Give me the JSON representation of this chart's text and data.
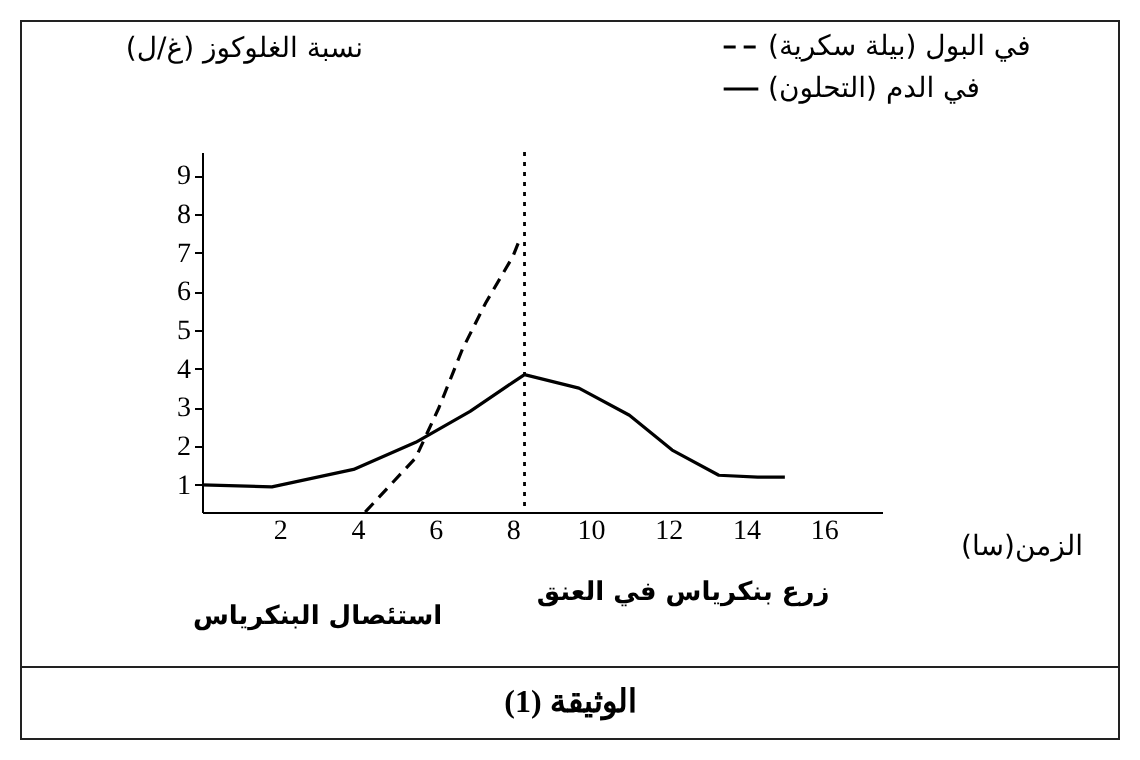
{
  "chart_data": {
    "type": "line",
    "xlabel": "الزمن(سا)",
    "ylabel": "نسبة الغلوكوز (غ/ل)",
    "xlim": [
      0,
      17.5
    ],
    "xticks": [
      2,
      4,
      6,
      8,
      10,
      12,
      14,
      16
    ],
    "ylim": [
      0.3,
      9.6
    ],
    "yticks": [
      1,
      2,
      3,
      4,
      5,
      6,
      7,
      8,
      9
    ],
    "grid": false,
    "legend": "top right",
    "marker": "none",
    "series": [
      {
        "name": "في البول (بيلة سكرية)",
        "color": "#000000",
        "line_style": "dashed",
        "x": [
          4.2,
          5.5,
          6.1,
          6.7,
          7.3,
          8.0,
          8.2
        ],
        "values": [
          0.3,
          1.7,
          3.0,
          4.5,
          5.7,
          6.9,
          7.4
        ]
      },
      {
        "name": "في الدم (التحلون)",
        "color": "#000000",
        "line_style": "solid",
        "x": [
          0,
          1.8,
          3.9,
          5.5,
          6.9,
          8.0,
          8.3,
          9.7,
          11,
          12.1,
          13.3,
          14.3,
          15
        ],
        "values": [
          1.0,
          0.95,
          1.4,
          2.1,
          2.9,
          3.65,
          3.85,
          3.5,
          2.8,
          1.9,
          1.25,
          1.2,
          1.2
        ]
      }
    ],
    "ref_lines": [
      {
        "axis": "x",
        "value": 8.3,
        "line_style": "dotted"
      }
    ],
    "annotations": [
      "استئصال البنكرياس",
      "زرع بنكرياس في العنق",
      "الوثيقة (1)"
    ]
  }
}
